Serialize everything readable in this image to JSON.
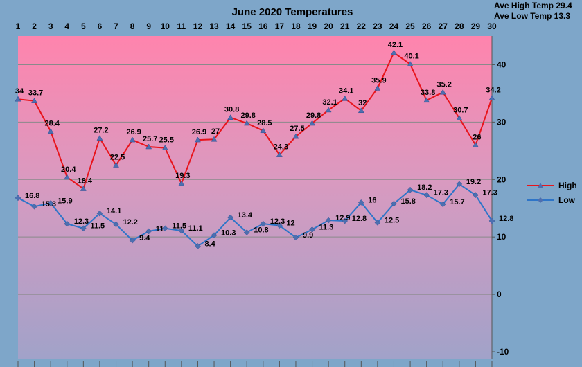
{
  "chart_data": {
    "type": "line",
    "title": "June 2020 Temperatures",
    "stats": [
      "Ave High Temp 29.4",
      "Ave Low Temp 13.3"
    ],
    "x": [
      1,
      2,
      3,
      4,
      5,
      6,
      7,
      8,
      9,
      10,
      11,
      12,
      13,
      14,
      15,
      16,
      17,
      18,
      19,
      20,
      21,
      22,
      23,
      24,
      25,
      26,
      27,
      28,
      29,
      30
    ],
    "ylim": [
      -10,
      45
    ],
    "yticks": [
      -10,
      0,
      10,
      20,
      30,
      40
    ],
    "grid": true,
    "legend_position": "right",
    "series": [
      {
        "name": "High",
        "color": "#e8141c",
        "values": [
          34,
          33.7,
          28.4,
          20.4,
          18.4,
          27.2,
          22.5,
          26.9,
          25.7,
          25.5,
          19.3,
          26.9,
          27,
          30.8,
          29.8,
          28.5,
          24.3,
          27.5,
          29.8,
          32.1,
          34.1,
          32,
          35.9,
          42.1,
          40.1,
          33.8,
          35.2,
          30.7,
          26,
          34.2
        ]
      },
      {
        "name": "Low",
        "color": "#2e75c8",
        "values": [
          16.8,
          15.3,
          15.9,
          12.3,
          11.5,
          14.1,
          12.2,
          9.4,
          11,
          11.5,
          11.1,
          8.4,
          10.3,
          13.4,
          10.8,
          12.3,
          12,
          9.9,
          11.3,
          12.9,
          12.8,
          16,
          12.5,
          15.8,
          18.2,
          17.3,
          15.7,
          19.2,
          17.3,
          12.8
        ]
      }
    ]
  }
}
